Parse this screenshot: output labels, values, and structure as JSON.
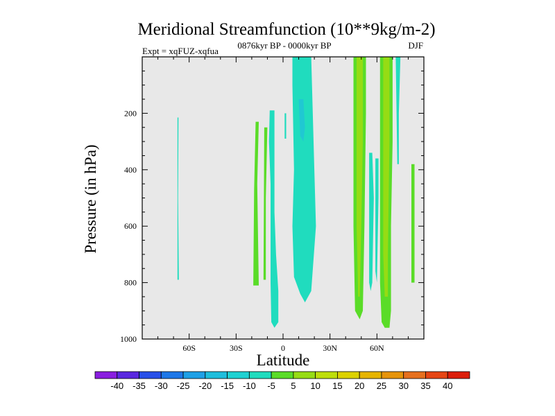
{
  "chart_data": {
    "type": "contour",
    "title": "Meridional Streamfunction (10**9kg/m-2)",
    "subtitle_left": "Expt = xqFUZ-xqfua",
    "subtitle_center": "0876kyr BP - 0000kyr BP",
    "subtitle_right": "DJF",
    "xlabel": "Latitude",
    "ylabel": "Pressure (in hPa)",
    "xlim": [
      -90,
      90
    ],
    "ylim": [
      0,
      1000
    ],
    "x_ticks": [
      {
        "value": -60,
        "label": "60S"
      },
      {
        "value": -30,
        "label": "30S"
      },
      {
        "value": 0,
        "label": "0"
      },
      {
        "value": 30,
        "label": "30N"
      },
      {
        "value": 60,
        "label": "60N"
      }
    ],
    "y_ticks": [
      {
        "value": 200,
        "label": "200"
      },
      {
        "value": 400,
        "label": "400"
      },
      {
        "value": 600,
        "label": "600"
      },
      {
        "value": 800,
        "label": "800"
      },
      {
        "value": 1000,
        "label": "1000"
      }
    ],
    "background_color": "#e8e8e8",
    "colorbar": {
      "labels": [
        "-40",
        "-35",
        "-30",
        "-25",
        "-20",
        "-15",
        "-10",
        "-5",
        "5",
        "10",
        "15",
        "20",
        "25",
        "30",
        "35",
        "40"
      ],
      "colors": [
        "#8a1ee0",
        "#5a28e0",
        "#2850e8",
        "#1e78e8",
        "#1ea0e6",
        "#1ebedc",
        "#1ed2d2",
        "#20dcbe",
        "#5adc28",
        "#96dc14",
        "#bede0a",
        "#dcd200",
        "#e6b400",
        "#e6940a",
        "#e6701e",
        "#e64614",
        "#dc1e0a"
      ]
    },
    "regions": [
      {
        "name": "band-65S",
        "color": "#20dcbe",
        "points": [
          [
            -67.5,
            215
          ],
          [
            -66.8,
            215
          ],
          [
            -67.1,
            500
          ],
          [
            -66.6,
            790
          ],
          [
            -67.5,
            790
          ]
        ]
      },
      {
        "name": "band-17S",
        "color": "#5adc28",
        "points": [
          [
            -17.5,
            230
          ],
          [
            -15.5,
            230
          ],
          [
            -16.5,
            450
          ],
          [
            -15.5,
            810
          ],
          [
            -19,
            810
          ],
          [
            -18.5,
            470
          ]
        ]
      },
      {
        "name": "band-12S",
        "color": "#5adc28",
        "points": [
          [
            -12,
            250
          ],
          [
            -10,
            250
          ],
          [
            -11,
            500
          ],
          [
            -11,
            790
          ],
          [
            -12.5,
            790
          ]
        ]
      },
      {
        "name": "band-8S",
        "color": "#20dcbe",
        "points": [
          [
            -8.5,
            190
          ],
          [
            -5.5,
            190
          ],
          [
            -5.5,
            400
          ],
          [
            -5.5,
            550
          ],
          [
            -4.5,
            700
          ],
          [
            -3,
            830
          ],
          [
            -3,
            940
          ],
          [
            -5.5,
            960
          ],
          [
            -7.5,
            940
          ],
          [
            -8,
            800
          ],
          [
            -8,
            600
          ],
          [
            -8,
            450
          ],
          [
            -9,
            300
          ]
        ]
      },
      {
        "name": "band-0-narrow",
        "color": "#20dcbe",
        "points": [
          [
            1,
            200
          ],
          [
            2,
            200
          ],
          [
            2,
            290
          ],
          [
            1,
            290
          ]
        ]
      },
      {
        "name": "column-eq",
        "color": "#20dcbe",
        "points": [
          [
            6,
            0
          ],
          [
            18,
            0
          ],
          [
            20,
            400
          ],
          [
            21,
            600
          ],
          [
            18,
            830
          ],
          [
            14,
            870
          ],
          [
            11,
            840
          ],
          [
            7,
            780
          ],
          [
            6,
            600
          ],
          [
            7,
            400
          ],
          [
            6,
            100
          ]
        ]
      },
      {
        "name": "core-eq",
        "color": "#20c8d2",
        "points": [
          [
            10,
            150
          ],
          [
            13,
            150
          ],
          [
            14,
            250
          ],
          [
            13,
            300
          ],
          [
            11,
            280
          ]
        ]
      },
      {
        "name": "column-45N-outer",
        "color": "#5adc28",
        "points": [
          [
            45,
            0
          ],
          [
            53,
            0
          ],
          [
            53,
            200
          ],
          [
            52,
            600
          ],
          [
            51,
            900
          ],
          [
            49,
            930
          ],
          [
            46,
            900
          ],
          [
            45,
            600
          ],
          [
            45,
            300
          ]
        ]
      },
      {
        "name": "column-45N-inner",
        "color": "#96dc14",
        "points": [
          [
            47,
            0
          ],
          [
            51,
            0
          ],
          [
            51,
            300
          ],
          [
            50,
            600
          ],
          [
            49,
            850
          ],
          [
            48,
            850
          ],
          [
            47,
            600
          ],
          [
            47,
            300
          ]
        ]
      },
      {
        "name": "band-55N",
        "color": "#20dcbe",
        "points": [
          [
            55,
            340
          ],
          [
            57,
            340
          ],
          [
            58,
            500
          ],
          [
            57,
            800
          ],
          [
            56,
            830
          ],
          [
            55,
            800
          ],
          [
            55,
            500
          ]
        ]
      },
      {
        "name": "band-59N",
        "color": "#20dcbe",
        "points": [
          [
            59,
            360
          ],
          [
            61,
            360
          ],
          [
            61,
            500
          ],
          [
            60,
            800
          ],
          [
            59,
            760
          ]
        ]
      },
      {
        "name": "column-65N-outer",
        "color": "#5adc28",
        "points": [
          [
            62,
            0
          ],
          [
            70,
            0
          ],
          [
            70,
            300
          ],
          [
            69,
            600
          ],
          [
            69,
            900
          ],
          [
            68,
            960
          ],
          [
            65,
            960
          ],
          [
            63,
            940
          ],
          [
            62,
            800
          ],
          [
            62,
            600
          ],
          [
            62,
            300
          ]
        ]
      },
      {
        "name": "column-65N-inner",
        "color": "#96dc14",
        "points": [
          [
            64,
            0
          ],
          [
            68,
            0
          ],
          [
            68,
            300
          ],
          [
            67,
            700
          ],
          [
            67,
            850
          ],
          [
            65,
            850
          ],
          [
            64,
            700
          ],
          [
            64,
            300
          ]
        ]
      },
      {
        "name": "column-72N",
        "color": "#20dcbe",
        "points": [
          [
            72,
            0
          ],
          [
            75,
            0
          ],
          [
            74,
            200
          ],
          [
            74,
            380
          ],
          [
            73,
            380
          ]
        ]
      },
      {
        "name": "band-82N",
        "color": "#5adc28",
        "points": [
          [
            82,
            380
          ],
          [
            84,
            380
          ],
          [
            84,
            800
          ],
          [
            82,
            800
          ]
        ]
      }
    ]
  }
}
